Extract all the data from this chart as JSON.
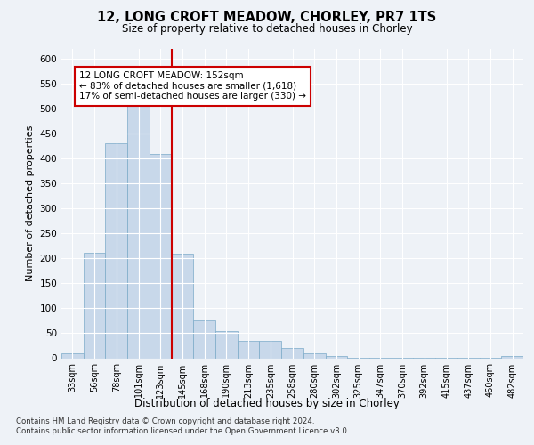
{
  "title_line1": "12, LONG CROFT MEADOW, CHORLEY, PR7 1TS",
  "title_line2": "Size of property relative to detached houses in Chorley",
  "xlabel": "Distribution of detached houses by size in Chorley",
  "ylabel": "Number of detached properties",
  "bar_color": "#c8d8ea",
  "bar_edge_color": "#7aaac8",
  "categories": [
    "33sqm",
    "56sqm",
    "78sqm",
    "101sqm",
    "123sqm",
    "145sqm",
    "168sqm",
    "190sqm",
    "213sqm",
    "235sqm",
    "258sqm",
    "280sqm",
    "302sqm",
    "325sqm",
    "347sqm",
    "370sqm",
    "392sqm",
    "415sqm",
    "437sqm",
    "460sqm",
    "482sqm"
  ],
  "values": [
    10,
    212,
    430,
    515,
    410,
    210,
    75,
    55,
    35,
    35,
    20,
    10,
    5,
    1,
    1,
    1,
    1,
    1,
    1,
    1,
    5
  ],
  "ylim": [
    0,
    620
  ],
  "yticks": [
    0,
    50,
    100,
    150,
    200,
    250,
    300,
    350,
    400,
    450,
    500,
    550,
    600
  ],
  "vline_color": "#cc0000",
  "vline_x": 4.5,
  "annotation_text": "12 LONG CROFT MEADOW: 152sqm\n← 83% of detached houses are smaller (1,618)\n17% of semi-detached houses are larger (330) →",
  "annotation_box_color": "#ffffff",
  "annotation_box_edge": "#cc0000",
  "footer_line1": "Contains HM Land Registry data © Crown copyright and database right 2024.",
  "footer_line2": "Contains public sector information licensed under the Open Government Licence v3.0.",
  "background_color": "#eef2f7",
  "plot_bg_color": "#eef2f7",
  "grid_color": "#ffffff"
}
